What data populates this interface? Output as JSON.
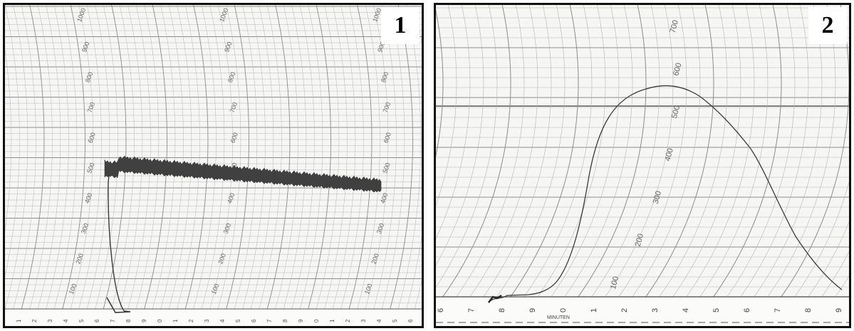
{
  "panels": [
    {
      "label": "1",
      "scale_labels": [
        "100",
        "200",
        "300",
        "400",
        "500",
        "600",
        "700",
        "800",
        "900",
        "1000"
      ],
      "bottom_digits": [
        "1",
        "2",
        "3",
        "4",
        "5",
        "6",
        "7",
        "8",
        "9",
        "0",
        "1",
        "2",
        "3",
        "4",
        "5",
        "6",
        "7",
        "8",
        "9",
        "0",
        "1",
        "2",
        "3",
        "4",
        "5",
        "6"
      ]
    },
    {
      "label": "2",
      "scale_labels": [
        "100",
        "200",
        "300",
        "400",
        "500",
        "600",
        "700"
      ],
      "bottom_digits": [
        "6",
        "7",
        "8",
        "9",
        "0",
        "1",
        "2",
        "3",
        "4",
        "5",
        "6",
        "7",
        "8",
        "9"
      ],
      "axis_caption": "MINUTEN"
    }
  ],
  "colors": {
    "paper": "#f6f6f4",
    "grid": "#8c8c8c",
    "grid_light": "#b5b5b5",
    "trace": "#3a3a3a",
    "border": "#111111"
  }
}
